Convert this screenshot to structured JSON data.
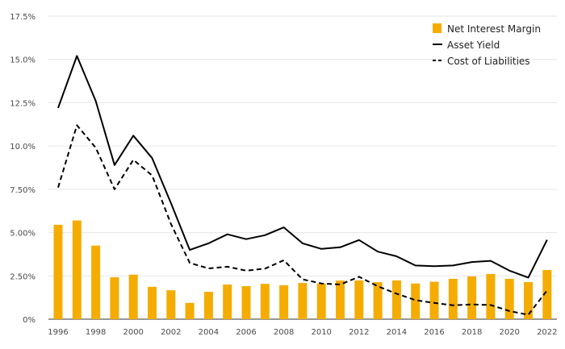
{
  "chart_data": {
    "type": "bar",
    "x": [
      1996,
      1997,
      1998,
      1999,
      2000,
      2001,
      2002,
      2003,
      2004,
      2005,
      2006,
      2007,
      2008,
      2009,
      2010,
      2011,
      2012,
      2013,
      2014,
      2015,
      2016,
      2017,
      2018,
      2019,
      2020,
      2021,
      2022
    ],
    "x_tick_labels": [
      "1996",
      "1998",
      "2000",
      "2002",
      "2004",
      "2006",
      "2008",
      "2010",
      "2012",
      "2014",
      "2016",
      "2018",
      "2020",
      "2022"
    ],
    "y_tick_labels": [
      "0%",
      "2.50%",
      "5.00%",
      "7.50%",
      "10.0%",
      "12.5%",
      "15.0%",
      "17.5%"
    ],
    "ylim": [
      0,
      17.5
    ],
    "y_ticks": [
      0,
      2.5,
      5,
      7.5,
      10,
      12.5,
      15,
      17.5
    ],
    "grid": "horizontal",
    "legend_position": "top-right",
    "series": [
      {
        "name": "Net Interest Margin",
        "type": "bar",
        "color": "#f5ac00",
        "values": [
          5.45,
          5.7,
          4.25,
          2.42,
          2.57,
          1.87,
          1.67,
          0.94,
          1.58,
          2.0,
          1.91,
          2.04,
          1.96,
          2.09,
          2.06,
          2.23,
          2.24,
          2.14,
          2.24,
          2.06,
          2.16,
          2.33,
          2.47,
          2.61,
          2.33,
          2.14,
          2.84
        ]
      },
      {
        "name": "Asset Yield",
        "type": "line",
        "color": "#000000",
        "dash": "solid",
        "values": [
          12.2,
          15.2,
          12.6,
          8.9,
          10.6,
          9.3,
          6.7,
          4.0,
          4.38,
          4.9,
          4.62,
          4.85,
          5.3,
          4.38,
          4.06,
          4.15,
          4.57,
          3.9,
          3.63,
          3.1,
          3.06,
          3.1,
          3.3,
          3.37,
          2.8,
          2.4,
          4.58
        ]
      },
      {
        "name": "Cost of Liabilities",
        "type": "line",
        "color": "#000000",
        "dash": "dashed",
        "values": [
          7.6,
          11.2,
          9.9,
          7.5,
          9.2,
          8.3,
          5.5,
          3.25,
          2.93,
          3.03,
          2.8,
          2.92,
          3.4,
          2.3,
          2.06,
          2.0,
          2.45,
          1.9,
          1.47,
          1.1,
          0.94,
          0.8,
          0.85,
          0.82,
          0.47,
          0.25,
          1.66
        ]
      }
    ]
  }
}
